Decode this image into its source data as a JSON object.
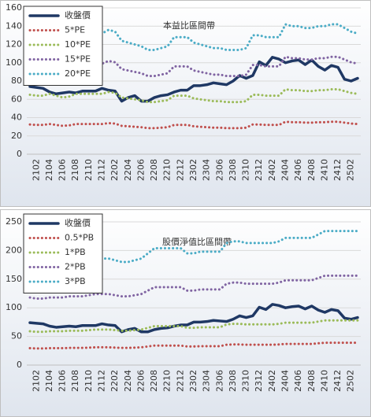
{
  "chart_data": [
    {
      "type": "line",
      "title": "本益比區間帶",
      "categories": [
        null,
        "2102",
        null,
        "2104",
        null,
        "2106",
        null,
        "2108",
        null,
        "2110",
        null,
        "2112",
        null,
        "2202",
        null,
        "2204",
        null,
        "2206",
        null,
        "2208",
        null,
        "2210",
        null,
        "2212",
        null,
        "2302",
        null,
        "2304",
        null,
        "2306",
        null,
        "2308",
        null,
        "2310",
        null,
        "2312",
        null,
        "2402",
        null,
        "2404",
        null,
        "2406",
        null,
        "2408",
        null,
        "2410",
        null,
        "2412",
        null,
        "2502",
        null
      ],
      "series": [
        {
          "name": "收盤價",
          "color": "#1f3864",
          "values": [
            74,
            73,
            72,
            68,
            66,
            67,
            68,
            67,
            69,
            69,
            69,
            72,
            70,
            69,
            58,
            62,
            64,
            58,
            58,
            62,
            64,
            65,
            68,
            70,
            70,
            75,
            75,
            76,
            78,
            77,
            76,
            80,
            86,
            83,
            86,
            101,
            97,
            106,
            104,
            100,
            102,
            103,
            98,
            103,
            96,
            92,
            97,
            95,
            82,
            80,
            83
          ]
        },
        {
          "name": "5*PE",
          "color": "#c0504d",
          "values": [
            32.5,
            32,
            32,
            33,
            32,
            31,
            31.5,
            33,
            33,
            33,
            33,
            33,
            34,
            33.5,
            31,
            30.5,
            30,
            29.5,
            28.5,
            28.5,
            29,
            29.5,
            32,
            32,
            32,
            30.5,
            30,
            29.5,
            29,
            29,
            28.5,
            28.5,
            28.5,
            29,
            32.5,
            32.5,
            32,
            32,
            32,
            35.5,
            35,
            35,
            34.5,
            34.5,
            35,
            35,
            35.5,
            35.5,
            34.5,
            33.5,
            33
          ]
        },
        {
          "name": "10*PE",
          "color": "#9bbb59",
          "values": [
            65,
            64,
            64,
            66,
            64,
            62,
            63,
            66,
            66,
            66,
            66,
            66,
            68,
            67,
            62,
            61,
            60,
            59,
            57,
            57,
            58,
            59,
            64,
            64,
            64,
            61,
            60,
            59,
            58,
            58,
            57,
            57,
            57,
            58,
            65,
            65,
            64,
            64,
            64,
            71,
            70,
            70,
            69,
            69,
            70,
            70,
            71,
            71,
            69,
            67,
            66
          ]
        },
        {
          "name": "15*PE",
          "color": "#8064a2",
          "values": [
            97.5,
            96,
            96,
            99,
            96,
            93,
            94.5,
            99,
            99,
            99,
            99,
            99,
            102,
            100.5,
            93,
            91.5,
            90,
            88.5,
            85.5,
            85.5,
            87,
            88.5,
            96,
            96,
            96,
            91.5,
            90,
            88.5,
            87,
            87,
            85.5,
            85.5,
            85.5,
            87,
            97.5,
            97.5,
            96,
            96,
            96,
            106.5,
            105,
            105,
            103.5,
            103.5,
            105,
            105,
            106.5,
            106.5,
            103.5,
            100.5,
            99
          ]
        },
        {
          "name": "20*PE",
          "color": "#4bacc6",
          "values": [
            130,
            128,
            128,
            132,
            128,
            124,
            126,
            132,
            132,
            132,
            132,
            132,
            136,
            134,
            124,
            122,
            120,
            118,
            114,
            114,
            116,
            118,
            128,
            128,
            128,
            122,
            120,
            118,
            116,
            116,
            114,
            114,
            114,
            116,
            130,
            130,
            128,
            128,
            128,
            142,
            140,
            140,
            138,
            138,
            140,
            140,
            142,
            142,
            138,
            134,
            132
          ]
        }
      ],
      "ylim": [
        0,
        160
      ],
      "yticks": [
        0,
        20,
        40,
        60,
        80,
        100,
        120,
        140,
        160
      ],
      "grid": true,
      "legend": "upper left"
    },
    {
      "type": "line",
      "title": "股價淨值比區間帶",
      "categories": [
        null,
        "2102",
        null,
        "2104",
        null,
        "2106",
        null,
        "2108",
        null,
        "2110",
        null,
        "2112",
        null,
        "2202",
        null,
        "2204",
        null,
        "2206",
        null,
        "2208",
        null,
        "2210",
        null,
        "2212",
        null,
        "2302",
        null,
        "2304",
        null,
        "2306",
        null,
        "2308",
        null,
        "2310",
        null,
        "2312",
        null,
        "2402",
        null,
        "2404",
        null,
        "2406",
        null,
        "2408",
        null,
        "2410",
        null,
        "2412",
        null,
        "2502",
        null
      ],
      "series": [
        {
          "name": "收盤價",
          "color": "#1f3864",
          "values": [
            74,
            73,
            72,
            68,
            66,
            67,
            68,
            67,
            69,
            69,
            69,
            72,
            70,
            69,
            58,
            62,
            64,
            58,
            58,
            62,
            64,
            65,
            68,
            70,
            70,
            75,
            75,
            76,
            78,
            77,
            76,
            80,
            86,
            83,
            86,
            101,
            97,
            106,
            104,
            100,
            102,
            103,
            98,
            103,
            96,
            92,
            97,
            95,
            82,
            80,
            83
          ]
        },
        {
          "name": "0.5*PB",
          "color": "#c0504d",
          "values": [
            29.5,
            29,
            29,
            29.5,
            29.5,
            29.5,
            30,
            30,
            30,
            30.5,
            31,
            31,
            31,
            30.5,
            30,
            30,
            30.5,
            31,
            32.5,
            34,
            34,
            34,
            34,
            34,
            32.5,
            32.5,
            33,
            33,
            33,
            33,
            35.5,
            36,
            36,
            35.5,
            35.5,
            35.5,
            35.5,
            35.5,
            36,
            37,
            37,
            37,
            37,
            37,
            38,
            39,
            39,
            39,
            39,
            39,
            39
          ]
        },
        {
          "name": "1*PB",
          "color": "#9bbb59",
          "values": [
            59,
            58,
            58,
            59,
            59,
            59,
            60,
            60,
            60,
            61,
            62,
            62,
            62,
            61,
            60,
            60,
            61,
            62,
            65,
            68,
            68,
            68,
            68,
            68,
            65,
            65,
            66,
            66,
            66,
            66,
            71,
            72,
            72,
            71,
            71,
            71,
            71,
            71,
            72,
            74,
            74,
            74,
            74,
            74,
            76,
            78,
            78,
            78,
            78,
            78,
            78
          ]
        },
        {
          "name": "2*PB",
          "color": "#8064a2",
          "values": [
            118,
            116,
            116,
            118,
            118,
            118,
            120,
            120,
            120,
            122,
            124,
            124,
            124,
            122,
            120,
            120,
            122,
            124,
            130,
            136,
            136,
            136,
            136,
            136,
            130,
            130,
            132,
            132,
            132,
            132,
            142,
            144,
            144,
            142,
            142,
            142,
            142,
            142,
            144,
            148,
            148,
            148,
            148,
            148,
            152,
            156,
            156,
            156,
            156,
            156,
            156
          ]
        },
        {
          "name": "3*PB",
          "color": "#4bacc6",
          "values": [
            177,
            174,
            174,
            177,
            177,
            177,
            180,
            180,
            180,
            183,
            186,
            186,
            186,
            183,
            180,
            180,
            183,
            186,
            195,
            204,
            204,
            204,
            204,
            204,
            195,
            195,
            198,
            198,
            198,
            198,
            213,
            216,
            216,
            213,
            213,
            213,
            213,
            213,
            216,
            222,
            222,
            222,
            222,
            222,
            228,
            234,
            234,
            234,
            234,
            234,
            234
          ]
        }
      ],
      "ylim": [
        0,
        250
      ],
      "yticks": [
        0,
        50,
        100,
        150,
        200,
        250
      ],
      "grid": true,
      "legend": "upper left"
    }
  ]
}
